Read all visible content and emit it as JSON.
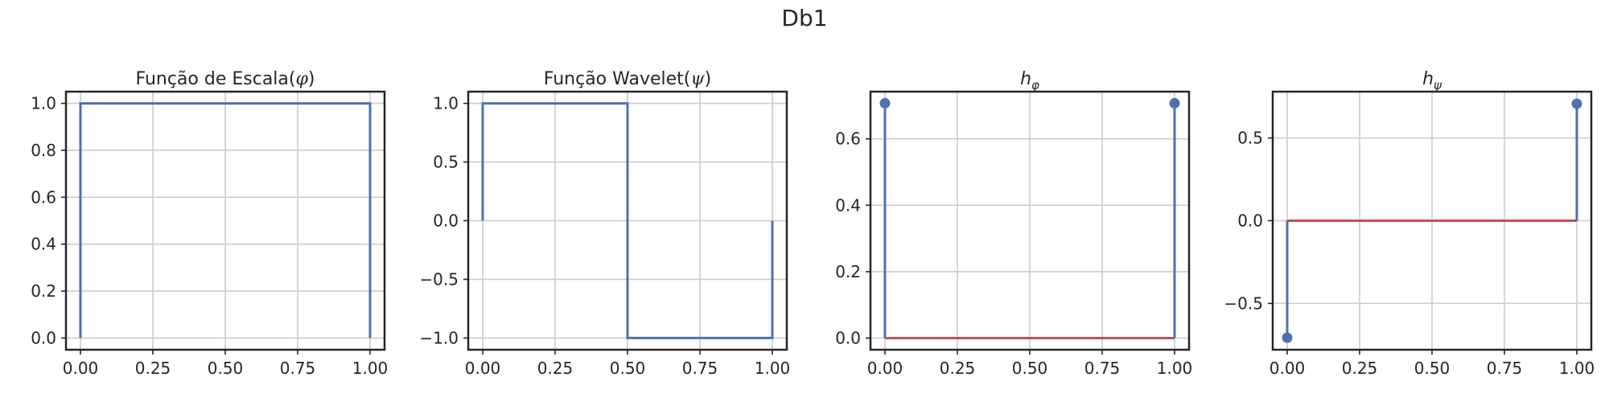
{
  "figure_title": "Db1",
  "chart_data": [
    {
      "type": "line",
      "title_text": "Função de Escala",
      "title_symbol": "φ",
      "title_style": "paren",
      "x": [
        0.0,
        0.0,
        1.0,
        1.0
      ],
      "y": [
        0.0,
        1.0,
        1.0,
        0.0
      ],
      "xlim": [
        -0.05,
        1.05
      ],
      "ylim": [
        -0.05,
        1.05
      ],
      "xticks": [
        0.0,
        0.25,
        0.5,
        0.75,
        1.0
      ],
      "xtick_labels": [
        "0.00",
        "0.25",
        "0.50",
        "0.75",
        "1.00"
      ],
      "yticks": [
        0.0,
        0.2,
        0.4,
        0.6,
        0.8,
        1.0
      ],
      "ytick_labels": [
        "0.0",
        "0.2",
        "0.4",
        "0.6",
        "0.8",
        "1.0"
      ],
      "grid": true,
      "line_color": "#4c72b0"
    },
    {
      "type": "line",
      "title_text": "Função Wavelet",
      "title_symbol": "ψ",
      "title_style": "paren",
      "x": [
        0.0,
        0.0,
        0.5,
        0.5,
        1.0,
        1.0
      ],
      "y": [
        0.0,
        1.0,
        1.0,
        -1.0,
        -1.0,
        0.0
      ],
      "xlim": [
        -0.05,
        1.05
      ],
      "ylim": [
        -1.1,
        1.1
      ],
      "xticks": [
        0.0,
        0.25,
        0.5,
        0.75,
        1.0
      ],
      "xtick_labels": [
        "0.00",
        "0.25",
        "0.50",
        "0.75",
        "1.00"
      ],
      "yticks": [
        -1.0,
        -0.5,
        0.0,
        0.5,
        1.0
      ],
      "ytick_labels": [
        "−1.0",
        "−0.5",
        "0.0",
        "0.5",
        "1.0"
      ],
      "grid": true,
      "line_color": "#4c72b0"
    },
    {
      "type": "stem",
      "title_text": "h",
      "title_symbol": "φ",
      "title_style": "subscript",
      "x": [
        0,
        1
      ],
      "y": [
        0.7071,
        0.7071
      ],
      "baseline": 0.0,
      "xlim": [
        -0.05,
        1.05
      ],
      "ylim": [
        -0.035,
        0.742
      ],
      "xticks": [
        0.0,
        0.25,
        0.5,
        0.75,
        1.0
      ],
      "xtick_labels": [
        "0.00",
        "0.25",
        "0.50",
        "0.75",
        "1.00"
      ],
      "yticks": [
        0.0,
        0.2,
        0.4,
        0.6
      ],
      "ytick_labels": [
        "0.0",
        "0.2",
        "0.4",
        "0.6"
      ],
      "grid": true,
      "stem_color": "#4c72b0",
      "baseline_color": "#c44e52"
    },
    {
      "type": "stem",
      "title_text": "h",
      "title_symbol": "ψ",
      "title_style": "subscript",
      "x": [
        0,
        1
      ],
      "y": [
        -0.7071,
        0.7071
      ],
      "baseline": 0.0,
      "xlim": [
        -0.05,
        1.05
      ],
      "ylim": [
        -0.78,
        0.78
      ],
      "xticks": [
        0.0,
        0.25,
        0.5,
        0.75,
        1.0
      ],
      "xtick_labels": [
        "0.00",
        "0.25",
        "0.50",
        "0.75",
        "1.00"
      ],
      "yticks": [
        -0.5,
        0.0,
        0.5
      ],
      "ytick_labels": [
        "−0.5",
        "0.0",
        "0.5"
      ],
      "grid": true,
      "stem_color": "#4c72b0",
      "baseline_color": "#c44e52"
    }
  ]
}
